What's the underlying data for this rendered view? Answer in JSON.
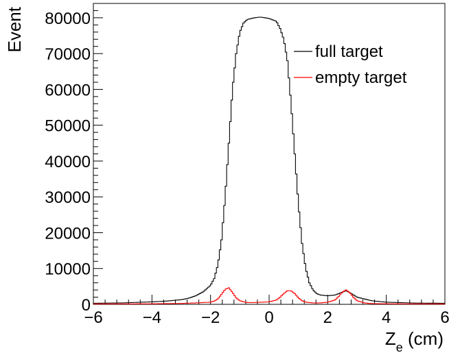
{
  "chart_data": {
    "type": "line",
    "title": "",
    "xlabel_main": "Z",
    "xlabel_sub": "e",
    "xlabel_rest": " (cm)",
    "ylabel": "Event",
    "xlim": [
      -6,
      6
    ],
    "ylim": [
      0,
      84000
    ],
    "x_ticks": [
      -6,
      -4,
      -2,
      0,
      2,
      4,
      6
    ],
    "x_tick_labels": [
      "−6",
      "−4",
      "−2",
      "0",
      "2",
      "4",
      "6"
    ],
    "y_ticks": [
      0,
      10000,
      20000,
      30000,
      40000,
      50000,
      60000,
      70000,
      80000
    ],
    "y_tick_labels": [
      "0",
      "10000",
      "20000",
      "30000",
      "40000",
      "50000",
      "60000",
      "70000",
      "80000"
    ],
    "grid": false,
    "legend_position": "top-right",
    "series": [
      {
        "name": "full target",
        "color": "#000000",
        "x": [
          -6,
          -5,
          -4,
          -3.5,
          -3,
          -2.75,
          -2.5,
          -2.25,
          -2,
          -1.875,
          -1.75,
          -1.625,
          -1.5,
          -1.375,
          -1.25,
          -1.125,
          -1,
          -0.875,
          -0.75,
          -0.5,
          -0.3,
          0,
          0.25,
          0.375,
          0.5,
          0.625,
          0.75,
          0.875,
          1,
          1.125,
          1.25,
          1.375,
          1.5,
          1.625,
          1.75,
          2,
          2.25,
          2.5,
          2.625,
          2.75,
          3,
          3.5,
          4,
          5,
          6
        ],
        "y": [
          300,
          400,
          700,
          900,
          1300,
          1700,
          2400,
          3500,
          5300,
          7200,
          11000,
          18000,
          30000,
          45000,
          60000,
          70000,
          76000,
          78500,
          79500,
          80000,
          80200,
          79800,
          79000,
          77000,
          74000,
          68000,
          56000,
          42000,
          28000,
          17000,
          10000,
          6000,
          4000,
          3000,
          2600,
          2400,
          2600,
          3400,
          3800,
          3300,
          2000,
          1000,
          600,
          350,
          300
        ]
      },
      {
        "name": "empty target",
        "color": "#ff0000",
        "x": [
          -6,
          -5,
          -4,
          -3,
          -2.5,
          -2,
          -1.875,
          -1.75,
          -1.625,
          -1.5,
          -1.375,
          -1.25,
          -1.125,
          -1,
          -0.875,
          -0.75,
          -0.5,
          -0.25,
          0,
          0.25,
          0.375,
          0.5,
          0.625,
          0.75,
          0.875,
          1,
          1.125,
          1.25,
          1.5,
          1.75,
          2,
          2.25,
          2.375,
          2.5,
          2.625,
          2.75,
          2.875,
          3,
          3.25,
          3.5,
          4,
          5,
          6
        ],
        "y": [
          100,
          100,
          150,
          250,
          400,
          600,
          900,
          1500,
          2800,
          4200,
          4600,
          3300,
          1800,
          1000,
          700,
          500,
          500,
          600,
          700,
          1200,
          2000,
          3000,
          3800,
          3800,
          3000,
          1800,
          1000,
          600,
          400,
          400,
          600,
          1200,
          2200,
          3400,
          4000,
          3300,
          2000,
          1000,
          400,
          200,
          150,
          100,
          100
        ]
      }
    ]
  }
}
